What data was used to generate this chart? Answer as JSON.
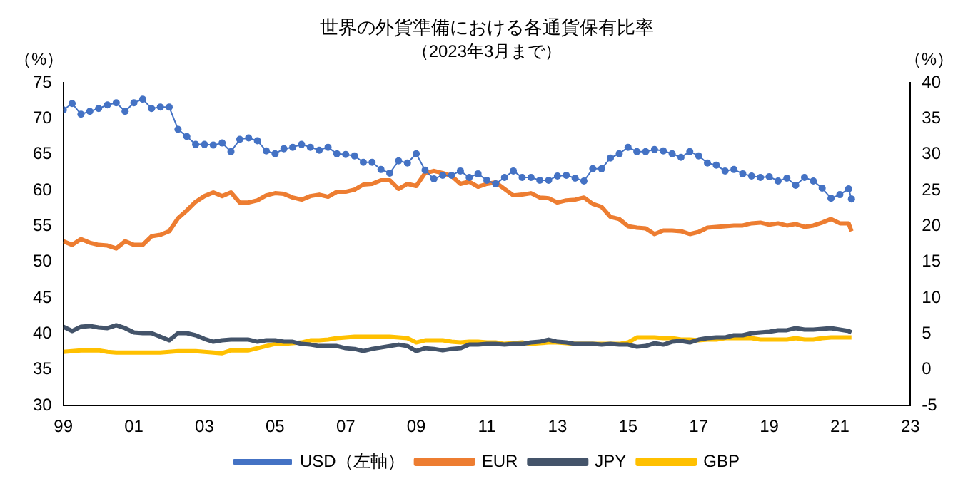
{
  "chart_data": {
    "type": "line",
    "title": "世界の外貨準備における各通貨保有比率",
    "subtitle": "（2023年3月まで）",
    "ylabel": "（%）",
    "y2label": "（%）",
    "x": [
      1999,
      1999.25,
      1999.5,
      1999.75,
      2000,
      2000.25,
      2000.5,
      2000.75,
      2001,
      2001.25,
      2001.5,
      2001.75,
      2002,
      2002.25,
      2002.5,
      2002.75,
      2003,
      2003.25,
      2003.5,
      2003.75,
      2004,
      2004.25,
      2004.5,
      2004.75,
      2005,
      2005.25,
      2005.5,
      2005.75,
      2006,
      2006.25,
      2006.5,
      2006.75,
      2007,
      2007.25,
      2007.5,
      2007.75,
      2008,
      2008.25,
      2008.5,
      2008.75,
      2009,
      2009.25,
      2009.5,
      2009.75,
      2010,
      2010.25,
      2010.5,
      2010.75,
      2011,
      2011.25,
      2011.5,
      2011.75,
      2012,
      2012.25,
      2012.5,
      2012.75,
      2013,
      2013.25,
      2013.5,
      2013.75,
      2014,
      2014.25,
      2014.5,
      2014.75,
      2015,
      2015.25,
      2015.5,
      2015.75,
      2016,
      2016.25,
      2016.5,
      2016.75,
      2017,
      2017.25,
      2017.5,
      2017.75,
      2018,
      2018.25,
      2018.5,
      2018.75,
      2019,
      2019.25,
      2019.5,
      2019.75,
      2020,
      2020.25,
      2020.5,
      2020.75,
      2021,
      2021.25,
      2021.33
    ],
    "series": [
      {
        "name": "USD（左軸）",
        "color": "#4472c4",
        "marker": "circle",
        "values": [
          71.2,
          72.1,
          70.6,
          71.0,
          71.4,
          71.9,
          72.2,
          71.0,
          72.2,
          72.7,
          71.4,
          71.6,
          71.6,
          68.5,
          67.5,
          66.4,
          66.4,
          66.3,
          66.6,
          65.4,
          67.1,
          67.3,
          66.9,
          65.5,
          65.1,
          65.8,
          66.0,
          66.4,
          66.0,
          65.6,
          66.0,
          65.1,
          65.0,
          64.8,
          63.9,
          63.9,
          62.9,
          62.4,
          64.1,
          63.8,
          65.1,
          62.8,
          61.6,
          62.1,
          62.1,
          62.7,
          61.8,
          62.3,
          61.4,
          60.9,
          61.8,
          62.7,
          61.8,
          61.8,
          61.4,
          61.4,
          62.0,
          62.1,
          61.7,
          61.3,
          63.0,
          63.0,
          64.5,
          65.1,
          66.0,
          65.4,
          65.4,
          65.7,
          65.5,
          65.1,
          64.6,
          65.4,
          64.8,
          63.8,
          63.5,
          62.7,
          62.9,
          62.3,
          62.0,
          61.8,
          61.9,
          61.3,
          61.7,
          60.7,
          61.8,
          61.3,
          60.3,
          58.9,
          59.4,
          60.2,
          58.8
        ]
      },
      {
        "name": "EUR",
        "color": "#ed7d31",
        "marker": "none",
        "axis": "y2",
        "values": [
          17.9,
          17.4,
          18.2,
          17.7,
          17.4,
          17.3,
          16.9,
          17.9,
          17.4,
          17.4,
          18.6,
          18.8,
          19.3,
          21.1,
          22.2,
          23.4,
          24.2,
          24.7,
          24.2,
          24.7,
          23.3,
          23.3,
          23.6,
          24.3,
          24.6,
          24.5,
          24.0,
          23.7,
          24.2,
          24.4,
          24.1,
          24.8,
          24.8,
          25.1,
          25.8,
          25.9,
          26.4,
          26.4,
          25.2,
          25.9,
          25.6,
          27.4,
          27.7,
          27.4,
          27.0,
          25.9,
          26.2,
          25.5,
          25.9,
          26.1,
          25.2,
          24.3,
          24.4,
          24.6,
          24.0,
          23.9,
          23.3,
          23.6,
          23.7,
          24.0,
          23.1,
          22.7,
          21.3,
          21.0,
          20.0,
          19.8,
          19.7,
          18.9,
          19.4,
          19.4,
          19.3,
          18.9,
          19.2,
          19.8,
          19.9,
          20.0,
          20.1,
          20.1,
          20.4,
          20.5,
          20.2,
          20.4,
          20.1,
          20.3,
          19.9,
          20.1,
          20.5,
          21.0,
          20.4,
          20.4,
          19.3
        ]
      },
      {
        "name": "JPY",
        "color": "#44546a",
        "marker": "none",
        "axis": "y2",
        "values": [
          6.0,
          5.4,
          6.0,
          6.1,
          5.9,
          5.8,
          6.2,
          5.8,
          5.2,
          5.1,
          5.1,
          4.6,
          4.1,
          5.1,
          5.1,
          4.8,
          4.3,
          3.9,
          4.1,
          4.2,
          4.2,
          4.2,
          3.9,
          4.1,
          4.1,
          3.9,
          3.9,
          3.6,
          3.5,
          3.3,
          3.3,
          3.3,
          3.0,
          2.9,
          2.6,
          2.9,
          3.1,
          3.3,
          3.5,
          3.3,
          2.6,
          3.0,
          2.9,
          2.7,
          2.9,
          3.0,
          3.5,
          3.5,
          3.6,
          3.6,
          3.5,
          3.6,
          3.6,
          3.8,
          3.9,
          4.2,
          3.9,
          3.8,
          3.6,
          3.6,
          3.6,
          3.5,
          3.6,
          3.5,
          3.5,
          3.2,
          3.3,
          3.7,
          3.5,
          3.9,
          4.0,
          3.8,
          4.2,
          4.4,
          4.5,
          4.5,
          4.8,
          4.8,
          5.1,
          5.2,
          5.3,
          5.5,
          5.5,
          5.8,
          5.6,
          5.6,
          5.7,
          5.8,
          5.6,
          5.4,
          5.2
        ]
      },
      {
        "name": "GBP",
        "color": "#ffc000",
        "marker": "none",
        "axis": "y2",
        "values": [
          2.5,
          2.6,
          2.7,
          2.7,
          2.7,
          2.5,
          2.4,
          2.4,
          2.4,
          2.4,
          2.4,
          2.4,
          2.5,
          2.6,
          2.6,
          2.6,
          2.5,
          2.4,
          2.3,
          2.7,
          2.7,
          2.7,
          3.0,
          3.3,
          3.6,
          3.6,
          3.7,
          3.8,
          4.1,
          4.1,
          4.2,
          4.4,
          4.5,
          4.6,
          4.6,
          4.6,
          4.6,
          4.6,
          4.5,
          4.4,
          3.8,
          4.1,
          4.1,
          4.1,
          3.9,
          3.8,
          3.9,
          3.9,
          3.8,
          3.8,
          3.6,
          3.7,
          3.8,
          3.6,
          3.7,
          3.8,
          3.8,
          3.7,
          3.6,
          3.6,
          3.6,
          3.6,
          3.6,
          3.6,
          3.8,
          4.5,
          4.5,
          4.5,
          4.4,
          4.4,
          4.2,
          4.2,
          4.1,
          4.2,
          4.2,
          4.4,
          4.4,
          4.4,
          4.4,
          4.2,
          4.2,
          4.2,
          4.2,
          4.4,
          4.2,
          4.2,
          4.4,
          4.5,
          4.5,
          4.5,
          4.5
        ]
      }
    ],
    "xlim": [
      1999,
      2023
    ],
    "xticks": [
      {
        "value": 1999,
        "label": "99"
      },
      {
        "value": 2001,
        "label": "01"
      },
      {
        "value": 2003,
        "label": "03"
      },
      {
        "value": 2005,
        "label": "05"
      },
      {
        "value": 2007,
        "label": "07"
      },
      {
        "value": 2009,
        "label": "09"
      },
      {
        "value": 2011,
        "label": "11"
      },
      {
        "value": 2013,
        "label": "13"
      },
      {
        "value": 2015,
        "label": "15"
      },
      {
        "value": 2017,
        "label": "17"
      },
      {
        "value": 2019,
        "label": "19"
      },
      {
        "value": 2021,
        "label": "21"
      },
      {
        "value": 2023,
        "label": "23"
      }
    ],
    "ylim": [
      30,
      75
    ],
    "yticks": [
      30,
      35,
      40,
      45,
      50,
      55,
      60,
      65,
      70,
      75
    ],
    "y2lim": [
      -5,
      40
    ],
    "y2ticks": [
      -5,
      0,
      5,
      10,
      15,
      20,
      25,
      30,
      35,
      40
    ],
    "grid": false,
    "legend": "bottom"
  }
}
